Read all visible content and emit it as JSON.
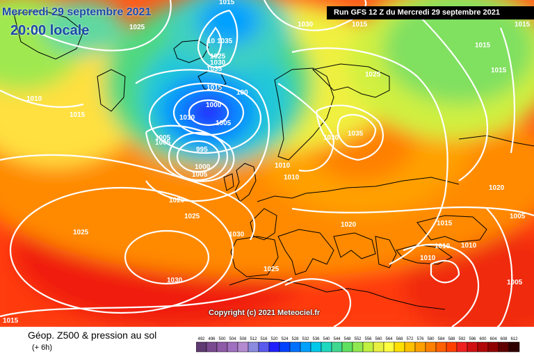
{
  "header": {
    "date": "Mercredi 29 septembre 2021",
    "local_time": "20:00 locale",
    "run": "Run GFS 12 Z du Mercredi 29 septembre 2021"
  },
  "copyright": "Copyright (c) 2021 Meteociel.fr",
  "footer": {
    "title": "Géop. Z500 & pression au sol",
    "subtitle": "(+ 6h)"
  },
  "scale": {
    "ticks": [
      "492",
      "496",
      "500",
      "504",
      "508",
      "512",
      "516",
      "520",
      "524",
      "528",
      "532",
      "536",
      "540",
      "544",
      "548",
      "552",
      "556",
      "560",
      "564",
      "568",
      "572",
      "576",
      "580",
      "584",
      "588",
      "592",
      "596",
      "600",
      "604",
      "608",
      "612"
    ],
    "colors": [
      "#603a72",
      "#7a4a90",
      "#8f5aa8",
      "#a070c0",
      "#b48ad0",
      "#8a8ae0",
      "#5a5aee",
      "#2020ff",
      "#0040ff",
      "#0070ff",
      "#00a0ff",
      "#00c8e8",
      "#20d8c0",
      "#40d890",
      "#60e060",
      "#90e850",
      "#c0f040",
      "#e8f040",
      "#ffff40",
      "#ffe000",
      "#ffc000",
      "#ffa000",
      "#ff8000",
      "#ff6000",
      "#ff4000",
      "#f02020",
      "#d01010",
      "#b00808",
      "#900000",
      "#600000",
      "#300000"
    ]
  },
  "isobar_labels": [
    {
      "id": "top-1025",
      "text": "1025"
    },
    {
      "id": "top-1015",
      "text": "1015"
    },
    {
      "id": "top-1030",
      "text": "1030"
    },
    {
      "id": "top-1015b",
      "text": "1015"
    },
    {
      "id": "right-1015",
      "text": "1015"
    },
    {
      "id": "right-1015b",
      "text": "1015"
    },
    {
      "id": "right-1015c",
      "text": "1015"
    },
    {
      "id": "ice-10",
      "text": "10"
    },
    {
      "id": "ice-1035",
      "text": "1035"
    },
    {
      "id": "ice-1025",
      "text": "1025"
    },
    {
      "id": "ice-1030",
      "text": "1030"
    },
    {
      "id": "ice-1035b",
      "text": "1035"
    },
    {
      "id": "w-1010",
      "text": "1010"
    },
    {
      "id": "w-1015",
      "text": "1015"
    },
    {
      "id": "c-1015",
      "text": "1015"
    },
    {
      "id": "c-100",
      "text": "100"
    },
    {
      "id": "low-1000",
      "text": "1000"
    },
    {
      "id": "low-1010",
      "text": "1010"
    },
    {
      "id": "low-1005",
      "text": "1005"
    },
    {
      "id": "s-1005",
      "text": "1005"
    },
    {
      "id": "s-1005b",
      "text": "1005"
    },
    {
      "id": "s-995",
      "text": "995"
    },
    {
      "id": "s-1000",
      "text": "1000"
    },
    {
      "id": "s-1005c",
      "text": "1005"
    },
    {
      "id": "n-1010",
      "text": "1010"
    },
    {
      "id": "n-1010b",
      "text": "1010"
    },
    {
      "id": "nw-1020",
      "text": "1020"
    },
    {
      "id": "nw-1025",
      "text": "1025"
    },
    {
      "id": "scand-1030",
      "text": "1030"
    },
    {
      "id": "scand-1035",
      "text": "1035"
    },
    {
      "id": "east-1025",
      "text": "1025"
    },
    {
      "id": "atl-1025",
      "text": "1025"
    },
    {
      "id": "atl-1030",
      "text": "1030"
    },
    {
      "id": "bisc-1030",
      "text": "1030"
    },
    {
      "id": "bisc-1025",
      "text": "1025"
    },
    {
      "id": "eu-1020",
      "text": "1020"
    },
    {
      "id": "e-1015",
      "text": "1015"
    },
    {
      "id": "e-1020",
      "text": "1020"
    },
    {
      "id": "e-1005",
      "text": "1005"
    },
    {
      "id": "se-1010",
      "text": "1010"
    },
    {
      "id": "se-1010b",
      "text": "1010"
    },
    {
      "id": "se-1010c",
      "text": "1010"
    },
    {
      "id": "se-1005",
      "text": "1005"
    },
    {
      "id": "sw-1015",
      "text": "1015"
    }
  ]
}
